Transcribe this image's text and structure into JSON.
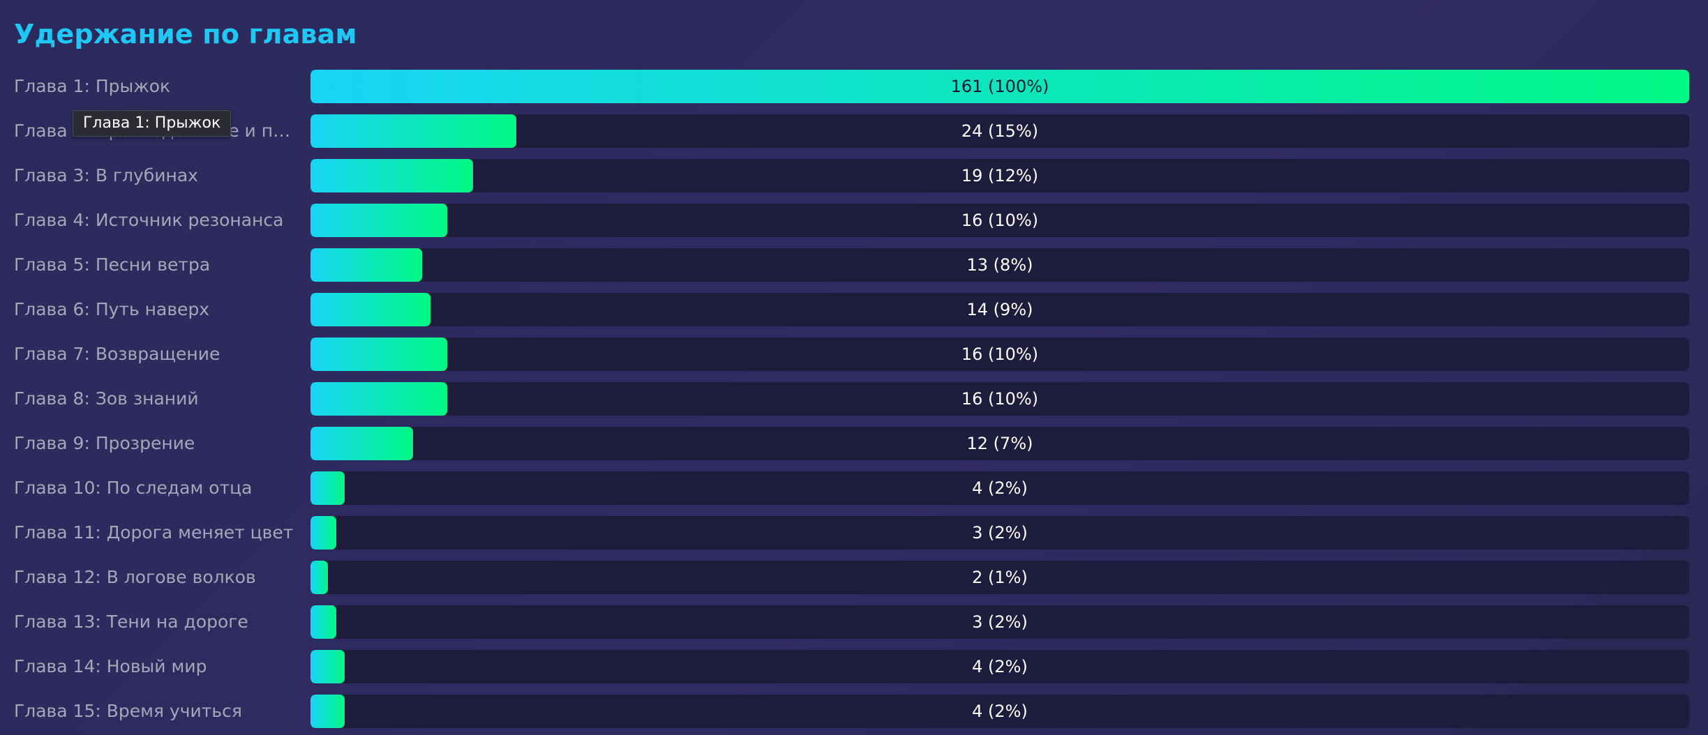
{
  "chart_data": {
    "type": "bar",
    "orientation": "horizontal",
    "title": "Удержание по главам",
    "categories": [
      "Глава 1: Прыжок",
      "Глава 2: Преследование и про…",
      "Глава 3: В глубинах",
      "Глава 4: Источник резонанса",
      "Глава 5: Песни ветра",
      "Глава 6: Путь наверх",
      "Глава 7: Возвращение",
      "Глава 8: Зов знаний",
      "Глава 9: Прозрение",
      "Глава 10: По следам отца",
      "Глава 11: Дорога меняет цвет",
      "Глава 12: В логове волков",
      "Глава 13: Тени на дороге",
      "Глава 14: Новый мир",
      "Глава 15: Время учиться"
    ],
    "values": [
      161,
      24,
      19,
      16,
      13,
      14,
      16,
      16,
      12,
      4,
      3,
      2,
      3,
      4,
      4
    ],
    "value_labels": [
      "161 (100%)",
      "24 (15%)",
      "19 (12%)",
      "16 (10%)",
      "13 (8%)",
      "14 (9%)",
      "16 (10%)",
      "16 (10%)",
      "12 (7%)",
      "4 (2%)",
      "3 (2%)",
      "2 (1%)",
      "3 (2%)",
      "4 (2%)",
      "4 (2%)"
    ],
    "xlim": [
      0,
      161
    ],
    "grid": false,
    "colors": {
      "bar_gradient_start": "#18d4f6",
      "bar_gradient_end": "#00f884",
      "track": "#1e1c3c",
      "title": "#1ec8f5"
    }
  },
  "tooltip": {
    "text": "Глава 1: Прыжок"
  }
}
